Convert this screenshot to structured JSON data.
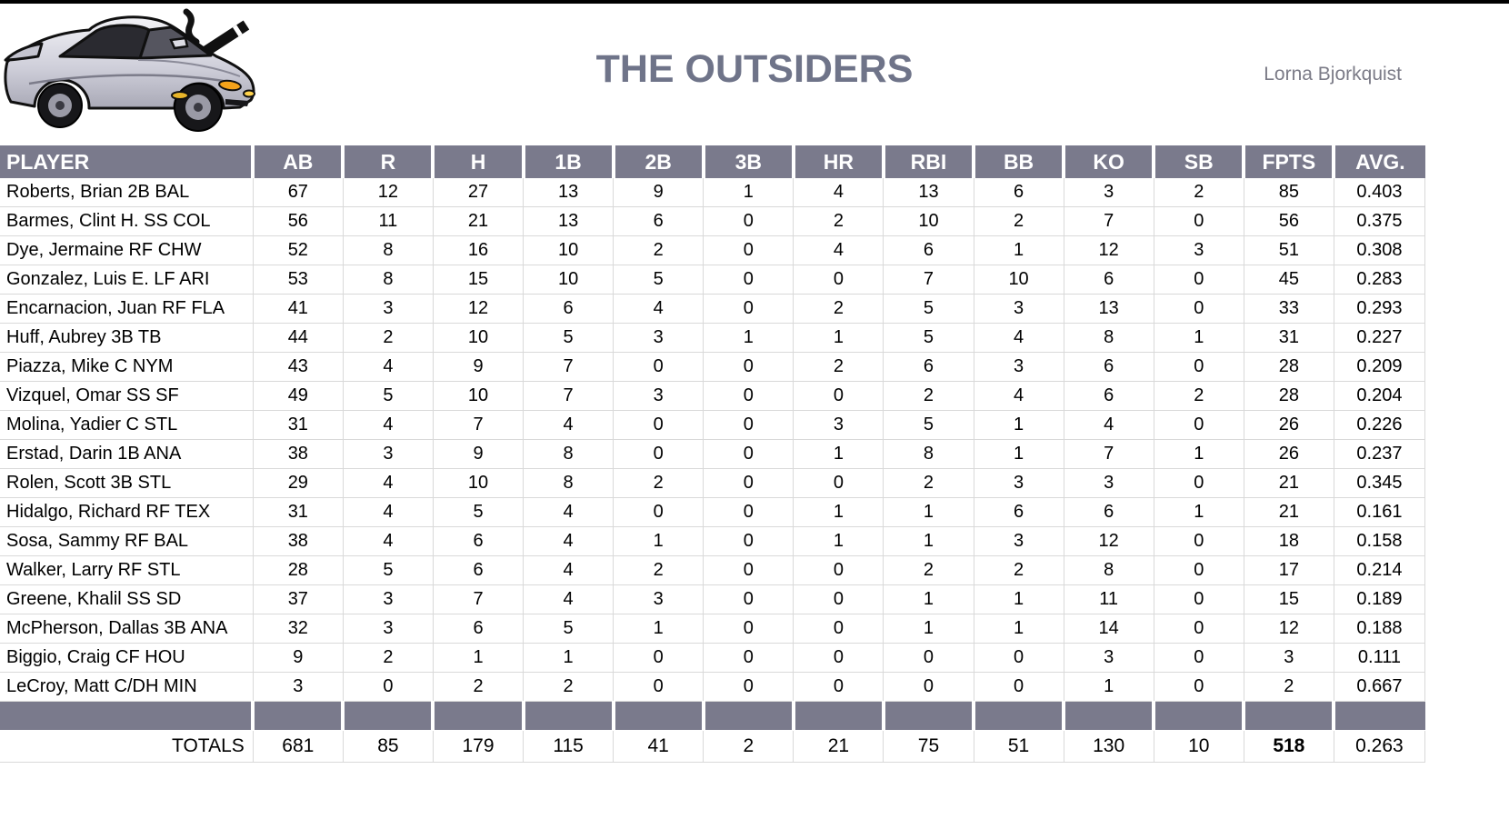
{
  "page": {
    "title": "THE OUTSIDERS",
    "owner": "Lorna Bjorkquist"
  },
  "icons": {
    "car": "silver-sports-car-with-cigarette-clipart"
  },
  "colors": {
    "header_bg": "#7a7a8c",
    "header_text": "#ffffff",
    "title_text": "#6f7489",
    "owner_text": "#7b7b87",
    "gridline": "#d9d9d9",
    "top_border": "#000000",
    "body_text": "#000000"
  },
  "table": {
    "columns": [
      "PLAYER",
      "AB",
      "R",
      "H",
      "1B",
      "2B",
      "3B",
      "HR",
      "RBI",
      "BB",
      "KO",
      "SB",
      "FPTS",
      "AVG."
    ],
    "rows": [
      {
        "player": "Roberts, Brian 2B BAL",
        "stats": [
          67,
          12,
          27,
          13,
          9,
          1,
          4,
          13,
          6,
          3,
          2,
          85,
          "0.403"
        ]
      },
      {
        "player": "Barmes, Clint H. SS COL",
        "stats": [
          56,
          11,
          21,
          13,
          6,
          0,
          2,
          10,
          2,
          7,
          0,
          56,
          "0.375"
        ]
      },
      {
        "player": "Dye, Jermaine RF CHW",
        "stats": [
          52,
          8,
          16,
          10,
          2,
          0,
          4,
          6,
          1,
          12,
          3,
          51,
          "0.308"
        ]
      },
      {
        "player": "Gonzalez, Luis E. LF ARI",
        "stats": [
          53,
          8,
          15,
          10,
          5,
          0,
          0,
          7,
          10,
          6,
          0,
          45,
          "0.283"
        ]
      },
      {
        "player": "Encarnacion, Juan RF FLA",
        "stats": [
          41,
          3,
          12,
          6,
          4,
          0,
          2,
          5,
          3,
          13,
          0,
          33,
          "0.293"
        ]
      },
      {
        "player": "Huff, Aubrey 3B TB",
        "stats": [
          44,
          2,
          10,
          5,
          3,
          1,
          1,
          5,
          4,
          8,
          1,
          31,
          "0.227"
        ]
      },
      {
        "player": "Piazza, Mike C NYM",
        "stats": [
          43,
          4,
          9,
          7,
          0,
          0,
          2,
          6,
          3,
          6,
          0,
          28,
          "0.209"
        ]
      },
      {
        "player": "Vizquel, Omar SS SF",
        "stats": [
          49,
          5,
          10,
          7,
          3,
          0,
          0,
          2,
          4,
          6,
          2,
          28,
          "0.204"
        ]
      },
      {
        "player": "Molina, Yadier C STL",
        "stats": [
          31,
          4,
          7,
          4,
          0,
          0,
          3,
          5,
          1,
          4,
          0,
          26,
          "0.226"
        ]
      },
      {
        "player": "Erstad, Darin 1B ANA",
        "stats": [
          38,
          3,
          9,
          8,
          0,
          0,
          1,
          8,
          1,
          7,
          1,
          26,
          "0.237"
        ]
      },
      {
        "player": "Rolen, Scott 3B STL",
        "stats": [
          29,
          4,
          10,
          8,
          2,
          0,
          0,
          2,
          3,
          3,
          0,
          21,
          "0.345"
        ]
      },
      {
        "player": "Hidalgo, Richard RF TEX",
        "stats": [
          31,
          4,
          5,
          4,
          0,
          0,
          1,
          1,
          6,
          6,
          1,
          21,
          "0.161"
        ]
      },
      {
        "player": "Sosa, Sammy RF BAL",
        "stats": [
          38,
          4,
          6,
          4,
          1,
          0,
          1,
          1,
          3,
          12,
          0,
          18,
          "0.158"
        ]
      },
      {
        "player": "Walker, Larry RF STL",
        "stats": [
          28,
          5,
          6,
          4,
          2,
          0,
          0,
          2,
          2,
          8,
          0,
          17,
          "0.214"
        ]
      },
      {
        "player": "Greene, Khalil SS SD",
        "stats": [
          37,
          3,
          7,
          4,
          3,
          0,
          0,
          1,
          1,
          11,
          0,
          15,
          "0.189"
        ]
      },
      {
        "player": "McPherson, Dallas 3B ANA",
        "stats": [
          32,
          3,
          6,
          5,
          1,
          0,
          0,
          1,
          1,
          14,
          0,
          12,
          "0.188"
        ]
      },
      {
        "player": "Biggio, Craig CF HOU",
        "stats": [
          9,
          2,
          1,
          1,
          0,
          0,
          0,
          0,
          0,
          3,
          0,
          3,
          "0.111"
        ]
      },
      {
        "player": "LeCroy, Matt C/DH MIN",
        "stats": [
          3,
          0,
          2,
          2,
          0,
          0,
          0,
          0,
          0,
          1,
          0,
          2,
          "0.667"
        ]
      }
    ],
    "totals_label": "TOTALS",
    "totals": [
      681,
      85,
      179,
      115,
      41,
      2,
      21,
      75,
      51,
      130,
      10,
      518,
      "0.263"
    ]
  }
}
